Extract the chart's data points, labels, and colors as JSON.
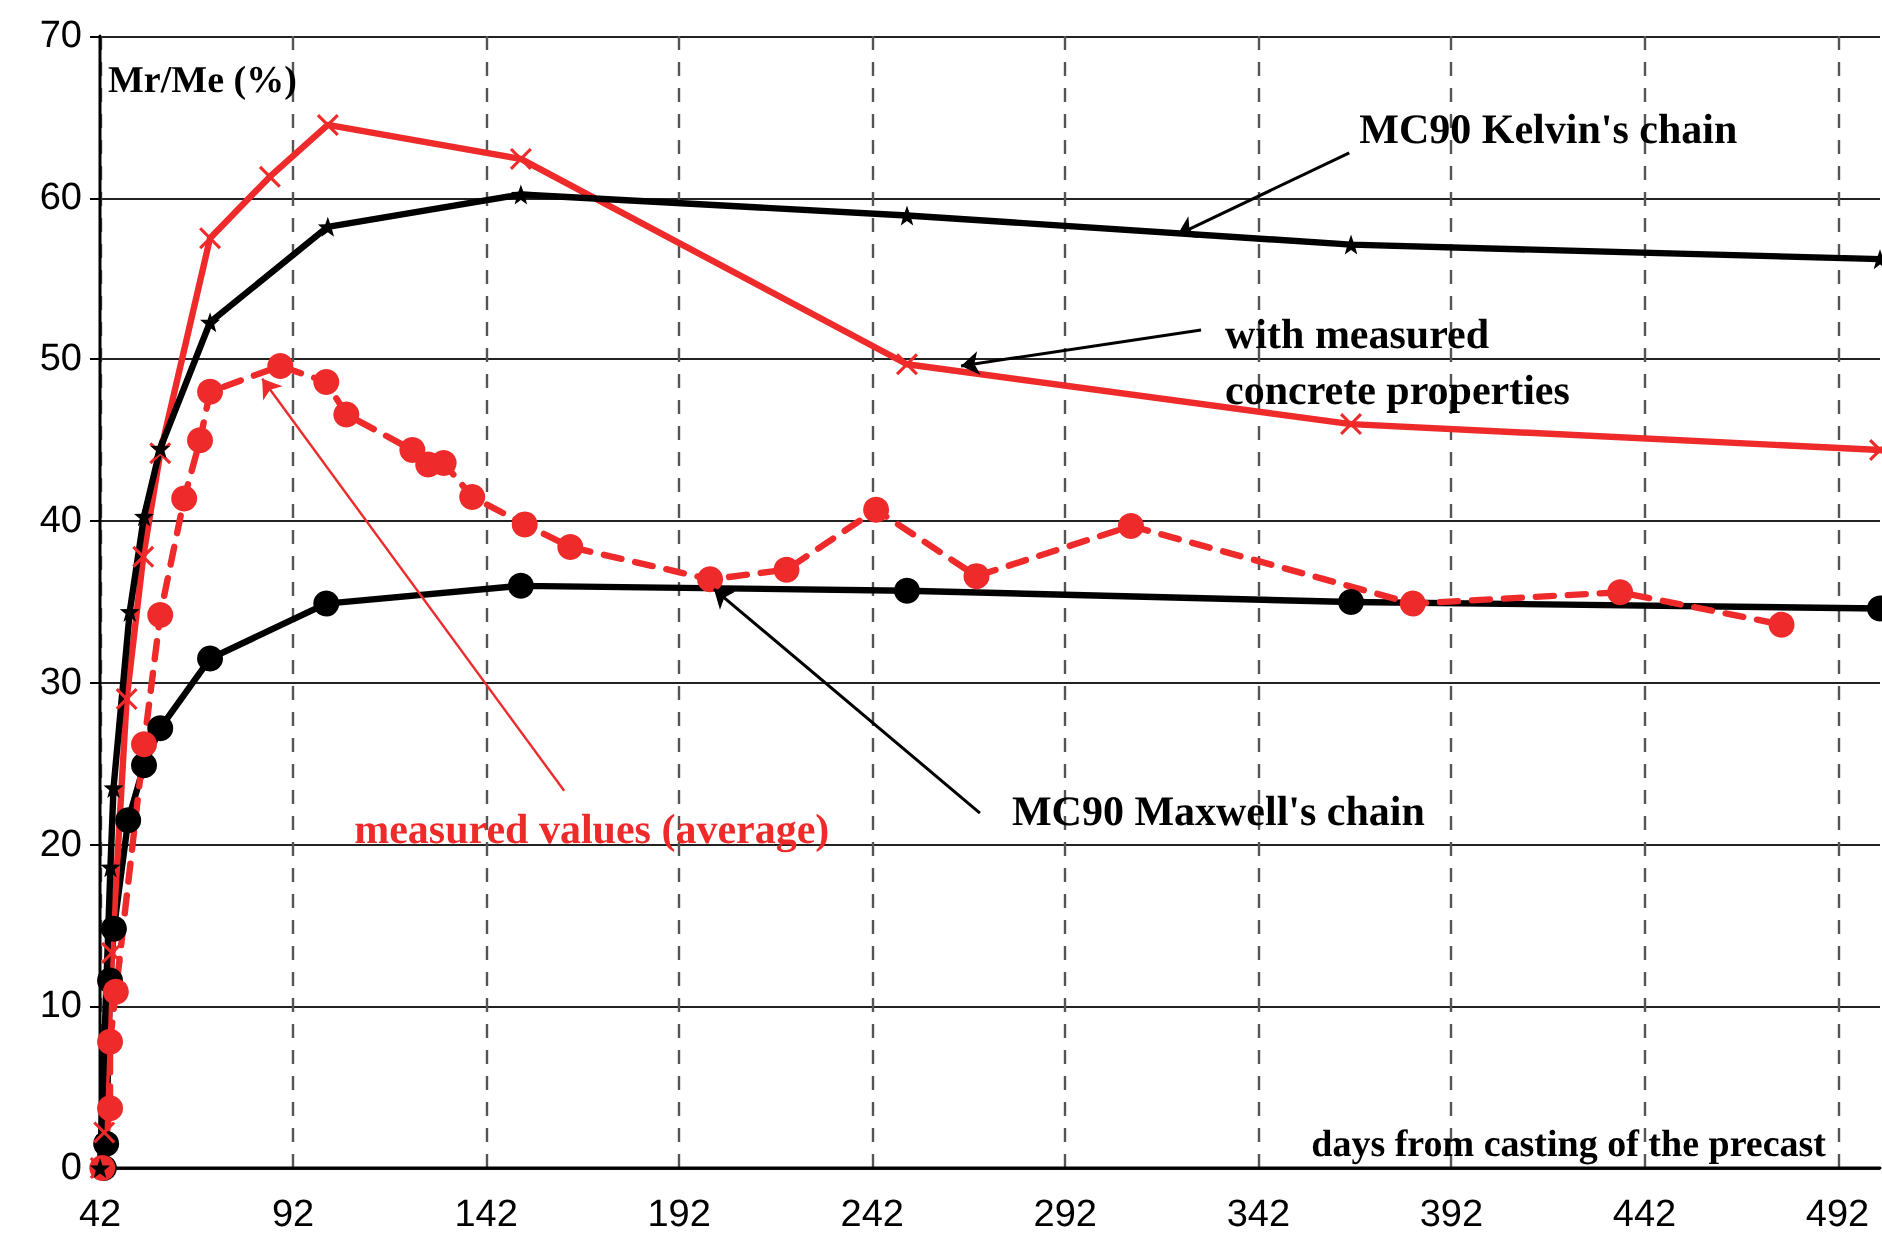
{
  "chart_data": {
    "type": "line",
    "ylabel": "Mr/Me (%)",
    "xlabel": "days from casting of the precast",
    "xlim": [
      42,
      503
    ],
    "xticks": [
      42,
      92,
      142,
      192,
      242,
      292,
      342,
      392,
      442,
      492
    ],
    "ylim": [
      0,
      70
    ],
    "yticks": [
      0,
      10,
      20,
      30,
      40,
      50,
      60,
      70
    ],
    "grid": true,
    "series": [
      {
        "color": "#000000",
        "marker": "star",
        "line_style": "solid",
        "x": [
          42,
          44.7,
          45.5,
          49.7,
          53.4,
          57.6,
          70.5,
          101,
          151,
          251,
          366,
          503
        ],
        "values": [
          0,
          18.6,
          23.5,
          34.4,
          40.3,
          44.5,
          52.3,
          58.2,
          60.2,
          58.9,
          57.1,
          56.2
        ]
      },
      {
        "color": "#ee2a2a",
        "marker": "cross",
        "line_style": "solid",
        "x": [
          42.2,
          43.1,
          45.1,
          48.9,
          53.2,
          57.6,
          70.5,
          86,
          101,
          151,
          251,
          366,
          503
        ],
        "values": [
          0,
          2.2,
          13.3,
          29.0,
          37.8,
          44.2,
          57.5,
          61.3,
          64.5,
          62.4,
          49.7,
          46.0,
          44.4
        ]
      },
      {
        "color": "#ee2a2a",
        "marker": "circle",
        "line_style": "dashed",
        "x": [
          42.6,
          44.6,
          44.6,
          46.1,
          53.4,
          57.6,
          63.8,
          67.9,
          70.5,
          88.7,
          100.6,
          105.8,
          122.9,
          127,
          131,
          138.4,
          152,
          163.8,
          200,
          219.8,
          243,
          269,
          309,
          382,
          435.7,
          477.5
        ],
        "values": [
          0,
          3.7,
          7.8,
          10.9,
          26.2,
          34.2,
          41.4,
          45.0,
          48.0,
          49.6,
          48.6,
          46.6,
          44.4,
          43.5,
          43.6,
          41.5,
          39.8,
          38.4,
          36.4,
          37.0,
          40.7,
          36.6,
          39.7,
          34.9,
          35.6,
          33.6
        ]
      },
      {
        "color": "#000000",
        "marker": "circle",
        "line_style": "solid",
        "x": [
          43,
          43.6,
          44.6,
          45.6,
          49.3,
          53.4,
          57.6,
          70.5,
          100.6,
          151,
          251,
          366,
          503
        ],
        "values": [
          0,
          1.5,
          11.6,
          14.8,
          21.5,
          24.9,
          27.2,
          31.5,
          34.9,
          36.0,
          35.7,
          35.0,
          34.6
        ]
      }
    ],
    "annotations": [
      {
        "text": "MC90 Kelvin's chain",
        "x": 321,
        "y": 57.7
      },
      {
        "text": "with measured concrete properties",
        "x": 265,
        "y": 49.6
      },
      {
        "text": "measured values (average)",
        "x": 84,
        "y": 48.8
      },
      {
        "text": "MC90 Maxwell's chain",
        "x": 201,
        "y": 35.8
      }
    ]
  }
}
